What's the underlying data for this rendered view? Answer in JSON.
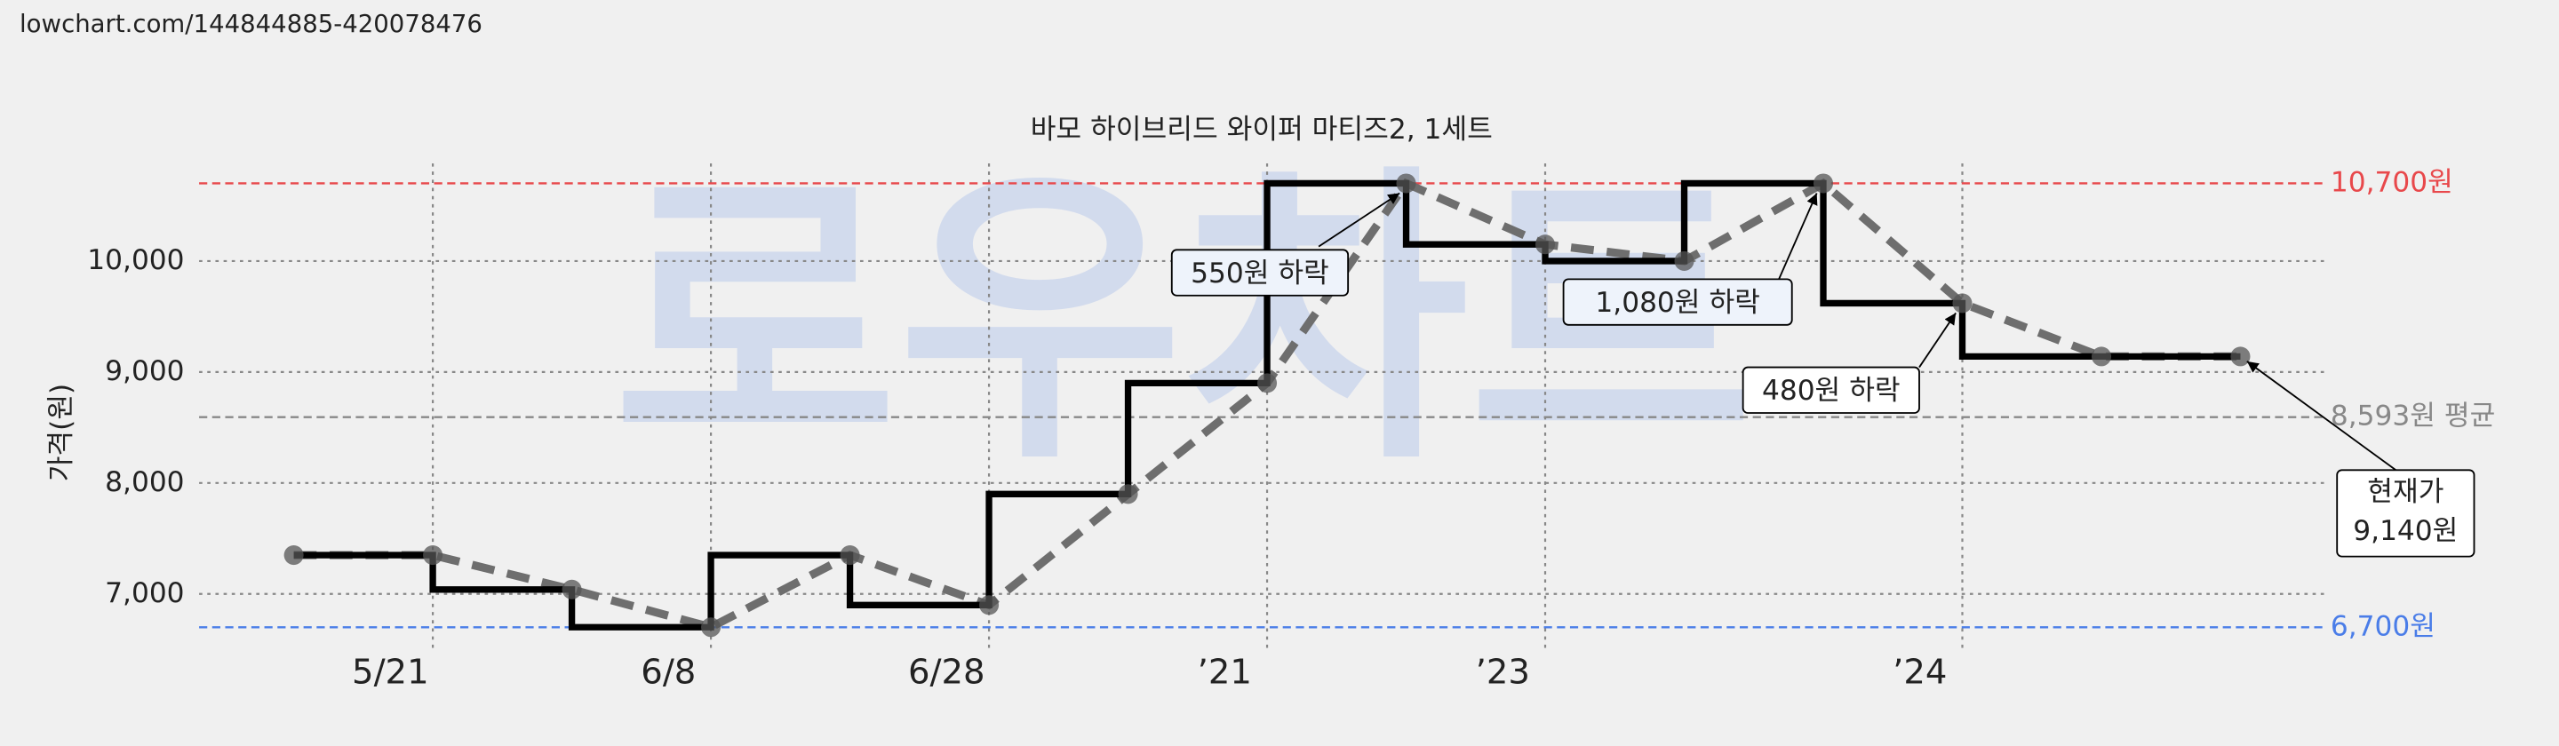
{
  "source_url": "lowchart.com/144844885-420078476",
  "chart_data": {
    "type": "line",
    "step": "pre",
    "title": "바모 하이브리드 와이퍼 마티즈2, 1세트",
    "watermark": "로우차트",
    "y_label": "가격(원)",
    "categories": [
      null,
      "5/21",
      null,
      "6/8",
      null,
      "6/28",
      null,
      "’21",
      null,
      "’23",
      null,
      null,
      "’24",
      null,
      null
    ],
    "series": [
      {
        "color": "#000000",
        "values": [
          7350,
          7350,
          7040,
          6700,
          7350,
          6900,
          7900,
          8900,
          10700,
          10150,
          10000,
          10700,
          9620,
          9140,
          9140
        ]
      }
    ],
    "ylim": [
      6470,
      10880
    ],
    "yticks": [
      {
        "value": 7000,
        "label": "7,000"
      },
      {
        "value": 8000,
        "label": "8,000"
      },
      {
        "value": 9000,
        "label": "9,000"
      },
      {
        "value": 10000,
        "label": "10,000"
      }
    ],
    "grid": true,
    "reference_lines": [
      {
        "value": 10700,
        "label": "10,700원",
        "color": "#e8484b"
      },
      {
        "value": 8593,
        "label": "8,593원 평균",
        "color": "#888888"
      },
      {
        "value": 6700,
        "label": "6,700원",
        "color": "#4a7de8"
      }
    ],
    "annotations": [
      "550원 하락",
      "1,080원 하락",
      "480원 하락"
    ],
    "current_price": [
      "현재가",
      "9,140원"
    ]
  }
}
